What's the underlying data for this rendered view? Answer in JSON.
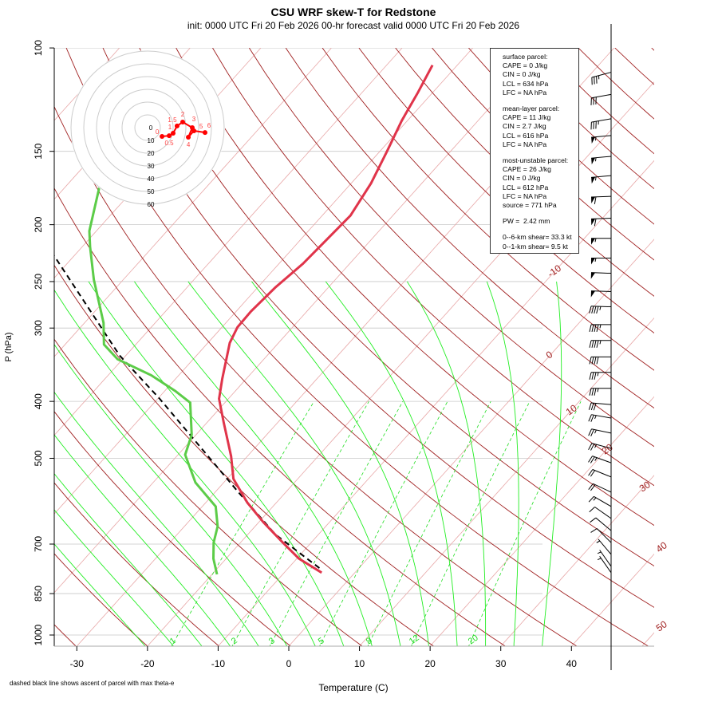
{
  "title": "CSU WRF skew-T for Redstone",
  "subtitle": "init: 0000 UTC Fri 20 Feb 2026     00-hr forecast valid 0000 UTC Fri 20 Feb 2026",
  "footnote": "dashed black line shows ascent of parcel with max theta-e",
  "legend": {
    "surface": [
      "surface parcel:",
      "CAPE = 0 J/kg",
      "CIN = 0 J/kg",
      "LCL = 634 hPa",
      "LFC = NA hPa"
    ],
    "mean_layer": [
      "mean-layer parcel:",
      "CAPE = 11 J/kg",
      "CIN = 2.7 J/kg",
      "LCL = 616 hPa",
      "LFC = NA hPa"
    ],
    "most_unstable": [
      "most-unstable parcel:",
      "CAPE = 26 J/kg",
      "CIN = 0 J/kg",
      "LCL = 612 hPa",
      "LFC = NA hPa",
      "source = 771 hPa"
    ],
    "pw": "PW =  2.42 mm",
    "shear": [
      "0--6-km shear= 33.3 kt",
      "0--1-km shear= 9.5 kt"
    ]
  },
  "chart_data": {
    "type": "line",
    "title": "CSU WRF skew-T for Redstone",
    "xlabel": "Temperature (C)",
    "ylabel": "P (hPa)",
    "xticks": [
      -30,
      -20,
      -10,
      0,
      10,
      20,
      30,
      40
    ],
    "yticks": [
      100,
      150,
      200,
      250,
      300,
      400,
      500,
      700,
      850,
      1000
    ],
    "isotherm_labels": [
      "-10",
      "0",
      "10",
      "20",
      "30",
      "40",
      "50"
    ],
    "mixing_ratio_labels": [
      "1",
      "2",
      "3",
      "5",
      "8",
      "12",
      "20"
    ],
    "colors": {
      "temperature": "#e0344a",
      "dewpoint": "#5ccc48",
      "parcel": "#000000",
      "dry_adiabat": "#a02020",
      "isotherm": "#e8a8a8",
      "moist_adiabat": "#22ee22",
      "mixing": "#22dd22"
    },
    "temperature": {
      "p": [
        783,
        741,
        696,
        643,
        595,
        542,
        496,
        435,
        396,
        366,
        318,
        299,
        281,
        256,
        233,
        212,
        193,
        170,
        150,
        133,
        119,
        107
      ],
      "t": [
        -4.7,
        -9.7,
        -14.0,
        -19.3,
        -24.1,
        -29.1,
        -32.3,
        -37.6,
        -41.3,
        -43.4,
        -46.9,
        -47.8,
        -47.9,
        -47.5,
        -46.6,
        -46.3,
        -46.0,
        -47.2,
        -49.0,
        -50.8,
        -52.1,
        -53.5
      ]
    },
    "dewpoint": {
      "p": [
        788,
        741,
        696,
        653,
        604,
        550,
        493,
        456,
        402,
        384,
        361,
        339,
        320,
        294,
        248,
        218,
        205,
        173
      ],
      "t": [
        -19.3,
        -21.8,
        -23.8,
        -25.3,
        -28.1,
        -34.0,
        -39.0,
        -40.6,
        -44.9,
        -48.5,
        -53.9,
        -60.7,
        -64.5,
        -67.3,
        -74.2,
        -78.9,
        -81.0,
        -85.1
      ]
    },
    "parcel": {
      "p": [
        769,
        674,
        573,
        396,
        334,
        212
      ],
      "t": [
        -5.6,
        -16.1,
        -26.5,
        -49.7,
        -60.9,
        -86.4
      ]
    },
    "winds": {
      "p": [
        110,
        120,
        132,
        141,
        153,
        165,
        179,
        195,
        211,
        228,
        242,
        260,
        276,
        296,
        315,
        336,
        357,
        380,
        405,
        427,
        453,
        481,
        509,
        538,
        571,
        604,
        633,
        664,
        696,
        729,
        764,
        783
      ],
      "speed_kt": [
        35,
        30,
        35,
        55,
        55,
        55,
        60,
        60,
        55,
        55,
        50,
        50,
        45,
        45,
        45,
        40,
        35,
        35,
        30,
        25,
        25,
        25,
        25,
        20,
        20,
        15,
        10,
        10,
        10,
        5,
        5,
        5
      ],
      "dir_deg": [
        255,
        260,
        260,
        265,
        265,
        265,
        268,
        268,
        270,
        270,
        272,
        272,
        272,
        270,
        270,
        270,
        270,
        270,
        275,
        280,
        282,
        285,
        290,
        292,
        295,
        300,
        305,
        310,
        315,
        320,
        325,
        325
      ]
    },
    "hodograph": {
      "ring_labels": [
        "0",
        "10",
        "20",
        "30",
        "40",
        "50",
        "60"
      ],
      "points": [
        {
          "label": "0",
          "u": 11.3,
          "v": -6.9
        },
        {
          "label": "0.5",
          "u": 16.9,
          "v": -6.3
        },
        {
          "label": "1",
          "u": 20,
          "v": -4.4
        },
        {
          "label": "1.5",
          "u": 23.1,
          "v": 1.3
        },
        {
          "label": "2",
          "u": 27.5,
          "v": 4.4
        },
        {
          "label": "3",
          "u": 35,
          "v": 0
        },
        {
          "label": "4",
          "u": 31.9,
          "v": -7.5
        },
        {
          "label": "5",
          "u": 36.3,
          "v": -2.5
        },
        {
          "label": "6",
          "u": 45,
          "v": -3.8
        }
      ]
    }
  }
}
